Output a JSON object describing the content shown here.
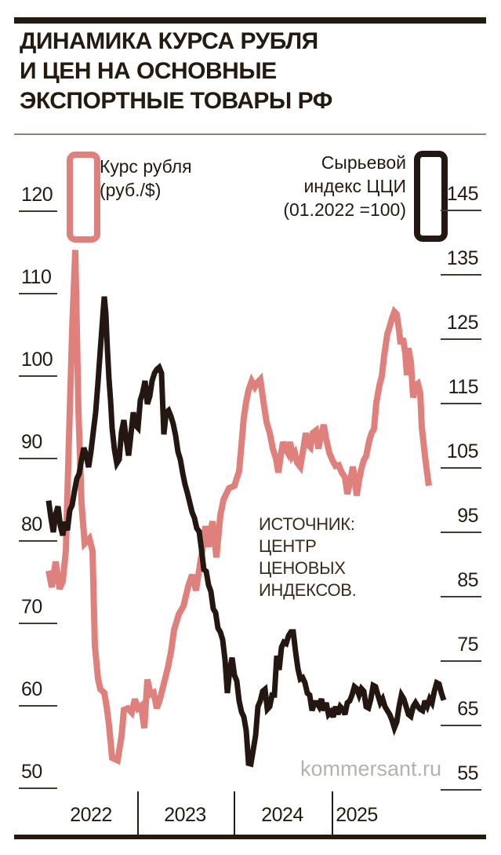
{
  "title": {
    "lines": [
      "ДИНАМИКА КУРСА РУБЛЯ",
      "И ЦЕН НА ОСНОВНЫЕ",
      "ЭКСПОРТНЫЕ ТОВАРЫ РФ"
    ]
  },
  "legend": {
    "rub": {
      "lines": [
        "Курс рубля",
        "(руб./$)"
      ],
      "color": "#e0807d"
    },
    "cci": {
      "lines": [
        "Сырьевой",
        "индекс ЦЦИ",
        "(01.2022 =100)"
      ],
      "color": "#241712"
    }
  },
  "source": {
    "lines": [
      "ИСТОЧНИК:",
      "ЦЕНТР",
      "ЦЕНОВЫХ",
      "ИНДЕКСОВ."
    ]
  },
  "watermark": "kommersant.ru",
  "x_axis": {
    "years": [
      "2022",
      "2023",
      "2024",
      "2025"
    ]
  },
  "chart_data": {
    "type": "line",
    "title": "Динамика курса рубля и цен на основные экспортные товары РФ",
    "x_note": "x is horizontal plot position in px; only year labels 2022-2025 are shown on axis",
    "left_axis": {
      "label": "Курс рубля (руб./$)",
      "min": 50,
      "max": 120,
      "ticks": [
        120,
        110,
        100,
        90,
        80,
        70,
        60,
        50
      ]
    },
    "right_axis": {
      "label": "Сырьевой индекс ЦЦИ (01.2022 =100)",
      "min": 55,
      "max": 145,
      "ticks": [
        145,
        135,
        125,
        115,
        105,
        95,
        85,
        75,
        65,
        55
      ]
    },
    "series": [
      {
        "name": "Курс рубля (руб./$)",
        "axis": "left",
        "color": "#e0807d",
        "width": 8,
        "points": [
          [
            62,
            76.3
          ],
          [
            66,
            74.3
          ],
          [
            71,
            77.4
          ],
          [
            76,
            74.1
          ],
          [
            80,
            75
          ],
          [
            84,
            78.7
          ],
          [
            88,
            92.5
          ],
          [
            92,
            105.4
          ],
          [
            96,
            115.2
          ],
          [
            100,
            95.9
          ],
          [
            104,
            84.4
          ],
          [
            108,
            79.6
          ],
          [
            114,
            80.2
          ],
          [
            118,
            78.7
          ],
          [
            121,
            67.2
          ],
          [
            125,
            63.2
          ],
          [
            128,
            61.9
          ],
          [
            133,
            61.5
          ],
          [
            136,
            59.8
          ],
          [
            139,
            57.6
          ],
          [
            143,
            53.6
          ],
          [
            150,
            53.3
          ],
          [
            155,
            56.2
          ],
          [
            158,
            59.4
          ],
          [
            163,
            59.6
          ],
          [
            168,
            59.1
          ],
          [
            172,
            60.7
          ],
          [
            176,
            59.6
          ],
          [
            180,
            59.9
          ],
          [
            184,
            57.2
          ],
          [
            188,
            63.1
          ],
          [
            192,
            61.3
          ],
          [
            196,
            61.5
          ],
          [
            200,
            59.6
          ],
          [
            204,
            60.7
          ],
          [
            209,
            62.6
          ],
          [
            214,
            64.5
          ],
          [
            218,
            66.4
          ],
          [
            222,
            69.1
          ],
          [
            228,
            71
          ],
          [
            234,
            72
          ],
          [
            240,
            74.4
          ],
          [
            245,
            75.8
          ],
          [
            250,
            73.9
          ],
          [
            255,
            77
          ],
          [
            258,
            78.7
          ],
          [
            262,
            81.7
          ],
          [
            266,
            79.2
          ],
          [
            271,
            82.3
          ],
          [
            276,
            77.9
          ],
          [
            281,
            83
          ],
          [
            285,
            84.9
          ],
          [
            292,
            86.3
          ],
          [
            299,
            86.6
          ],
          [
            305,
            88.4
          ],
          [
            308,
            91.6
          ],
          [
            311,
            94.9
          ],
          [
            314,
            96.8
          ],
          [
            317,
            98.2
          ],
          [
            321,
            99.3
          ],
          [
            325,
            98.6
          ],
          [
            328,
            99.1
          ],
          [
            332,
            99.5
          ],
          [
            336,
            96.8
          ],
          [
            340,
            94.3
          ],
          [
            344,
            93
          ],
          [
            348,
            91.1
          ],
          [
            352,
            89.9
          ],
          [
            355,
            88.2
          ],
          [
            358,
            90.2
          ],
          [
            361,
            91.9
          ],
          [
            364,
            91.1
          ],
          [
            367,
            90.6
          ],
          [
            370,
            91.9
          ],
          [
            373,
            90.2
          ],
          [
            376,
            90.6
          ],
          [
            379,
            89.4
          ],
          [
            383,
            88.9
          ],
          [
            387,
            91.1
          ],
          [
            390,
            93
          ],
          [
            393,
            91.6
          ],
          [
            396,
            91.3
          ],
          [
            399,
            93
          ],
          [
            403,
            93.3
          ],
          [
            406,
            91.1
          ],
          [
            409,
            92.5
          ],
          [
            413,
            94
          ],
          [
            416,
            92.3
          ],
          [
            420,
            90.6
          ],
          [
            424,
            89.7
          ],
          [
            428,
            89
          ],
          [
            432,
            89.1
          ],
          [
            436,
            88.2
          ],
          [
            440,
            87.6
          ],
          [
            443,
            85.6
          ],
          [
            447,
            87.3
          ],
          [
            450,
            88.9
          ],
          [
            452,
            87.8
          ],
          [
            455,
            85.4
          ],
          [
            458,
            87.3
          ],
          [
            461,
            88.7
          ],
          [
            464,
            89.7
          ],
          [
            467,
            90.2
          ],
          [
            471,
            92.1
          ],
          [
            474,
            93
          ],
          [
            477,
            93.5
          ],
          [
            480,
            96.7
          ],
          [
            484,
            98.8
          ],
          [
            487,
            99.9
          ],
          [
            490,
            102.4
          ],
          [
            494,
            105
          ],
          [
            497,
            105.9
          ],
          [
            500,
            106.9
          ],
          [
            503,
            107.7
          ],
          [
            506,
            107.4
          ],
          [
            509,
            105.4
          ],
          [
            511,
            103.8
          ],
          [
            514,
            104.5
          ],
          [
            517,
            102.6
          ],
          [
            519,
            100
          ],
          [
            521,
            103.3
          ],
          [
            524,
            101.6
          ],
          [
            527,
            97.3
          ],
          [
            530,
            98.8
          ],
          [
            533,
            99
          ],
          [
            536,
            97.8
          ],
          [
            538,
            93.7
          ],
          [
            541,
            91.1
          ],
          [
            544,
            88.7
          ],
          [
            547,
            86.6
          ]
        ]
      },
      {
        "name": "Сырьевой индекс ЦЦИ (01.2022 =100)",
        "axis": "right",
        "color": "#241712",
        "width": 7,
        "points": [
          [
            62,
            99.8
          ],
          [
            65,
            97.1
          ],
          [
            68,
            94.9
          ],
          [
            71,
            97.7
          ],
          [
            74,
            98.9
          ],
          [
            77,
            95.9
          ],
          [
            80,
            94.4
          ],
          [
            83,
            96.5
          ],
          [
            86,
            95.2
          ],
          [
            89,
            98.3
          ],
          [
            92,
            99.1
          ],
          [
            95,
            101.3
          ],
          [
            98,
            103.2
          ],
          [
            101,
            104
          ],
          [
            104,
            106.2
          ],
          [
            107,
            108
          ],
          [
            110,
            106.8
          ],
          [
            113,
            105
          ],
          [
            116,
            107.4
          ],
          [
            119,
            110.5
          ],
          [
            122,
            113.5
          ],
          [
            125,
            118.2
          ],
          [
            128,
            123.3
          ],
          [
            131,
            128.2
          ],
          [
            133,
            131.5
          ],
          [
            135,
            128.8
          ],
          [
            137,
            123.3
          ],
          [
            139,
            118.7
          ],
          [
            141,
            115.4
          ],
          [
            143,
            111.1
          ],
          [
            146,
            107.7
          ],
          [
            149,
            105.6
          ],
          [
            152,
            106.2
          ],
          [
            155,
            110.5
          ],
          [
            158,
            112.3
          ],
          [
            161,
            109.3
          ],
          [
            164,
            106.8
          ],
          [
            167,
            110.1
          ],
          [
            170,
            113.5
          ],
          [
            173,
            111.5
          ],
          [
            176,
            111.1
          ],
          [
            179,
            115.4
          ],
          [
            182,
            116.6
          ],
          [
            185,
            118.4
          ],
          [
            188,
            114.8
          ],
          [
            191,
            116
          ],
          [
            194,
            118.4
          ],
          [
            197,
            119.6
          ],
          [
            200,
            120.2
          ],
          [
            203,
            120.5
          ],
          [
            206,
            119.6
          ],
          [
            209,
            110.1
          ],
          [
            212,
            113.5
          ],
          [
            215,
            113.8
          ],
          [
            218,
            112.9
          ],
          [
            221,
            111.7
          ],
          [
            224,
            109.9
          ],
          [
            227,
            107.4
          ],
          [
            230,
            106.2
          ],
          [
            233,
            104.1
          ],
          [
            236,
            102.3
          ],
          [
            239,
            101
          ],
          [
            242,
            99.5
          ],
          [
            245,
            98
          ],
          [
            248,
            97.1
          ],
          [
            251,
            95.5
          ],
          [
            254,
            95
          ],
          [
            257,
            92.2
          ],
          [
            260,
            89.1
          ],
          [
            263,
            88.8
          ],
          [
            266,
            86.7
          ],
          [
            269,
            85.7
          ],
          [
            272,
            83
          ],
          [
            275,
            82.4
          ],
          [
            278,
            80
          ],
          [
            281,
            79.4
          ],
          [
            284,
            78.2
          ],
          [
            287,
            75.1
          ],
          [
            290,
            69.9
          ],
          [
            293,
            73.5
          ],
          [
            296,
            75.4
          ],
          [
            299,
            72.7
          ],
          [
            302,
            71.8
          ],
          [
            305,
            68.7
          ],
          [
            308,
            67
          ],
          [
            311,
            66.2
          ],
          [
            314,
            64.1
          ],
          [
            317,
            59
          ],
          [
            320,
            58.9
          ],
          [
            323,
            61.1
          ],
          [
            326,
            63.3
          ],
          [
            329,
            67.8
          ],
          [
            332,
            68.7
          ],
          [
            335,
            70.2
          ],
          [
            338,
            70.5
          ],
          [
            341,
            67.4
          ],
          [
            344,
            67.8
          ],
          [
            347,
            69.6
          ],
          [
            350,
            69.6
          ],
          [
            353,
            75.7
          ],
          [
            356,
            73.5
          ],
          [
            359,
            77
          ],
          [
            362,
            77.8
          ],
          [
            365,
            77.6
          ],
          [
            368,
            78.8
          ],
          [
            371,
            79.4
          ],
          [
            374,
            79.4
          ],
          [
            377,
            76.3
          ],
          [
            380,
            73.7
          ],
          [
            383,
            72.1
          ],
          [
            386,
            72.3
          ],
          [
            389,
            71.5
          ],
          [
            392,
            69.9
          ],
          [
            395,
            69.6
          ],
          [
            398,
            67.2
          ],
          [
            401,
            68.4
          ],
          [
            404,
            68.4
          ],
          [
            407,
            67.8
          ],
          [
            410,
            69
          ],
          [
            413,
            67.2
          ],
          [
            416,
            68.4
          ],
          [
            419,
            66.6
          ],
          [
            422,
            67
          ],
          [
            425,
            66.2
          ],
          [
            428,
            67.8
          ],
          [
            431,
            66.6
          ],
          [
            434,
            67.8
          ],
          [
            437,
            67.4
          ],
          [
            440,
            66.6
          ],
          [
            443,
            68.4
          ],
          [
            446,
            68.7
          ],
          [
            449,
            69.6
          ],
          [
            452,
            70.9
          ],
          [
            455,
            70.6
          ],
          [
            458,
            69.6
          ],
          [
            461,
            70.6
          ],
          [
            464,
            70.2
          ],
          [
            467,
            67.8
          ],
          [
            470,
            67.6
          ],
          [
            473,
            69
          ],
          [
            476,
            71.1
          ],
          [
            479,
            70.9
          ],
          [
            482,
            69.6
          ],
          [
            485,
            68.4
          ],
          [
            488,
            69
          ],
          [
            491,
            67.8
          ],
          [
            494,
            67.2
          ],
          [
            497,
            66.6
          ],
          [
            500,
            65.7
          ],
          [
            503,
            64.5
          ],
          [
            506,
            65.4
          ],
          [
            509,
            67.8
          ],
          [
            512,
            69.6
          ],
          [
            515,
            69
          ],
          [
            518,
            67.8
          ],
          [
            521,
            66.6
          ],
          [
            524,
            66.3
          ],
          [
            527,
            67.8
          ],
          [
            530,
            68.4
          ],
          [
            533,
            67.8
          ],
          [
            536,
            67.4
          ],
          [
            539,
            67.2
          ],
          [
            542,
            68.7
          ],
          [
            545,
            67.9
          ],
          [
            548,
            69
          ],
          [
            551,
            68.4
          ],
          [
            554,
            70.2
          ],
          [
            557,
            71.5
          ],
          [
            560,
            71.3
          ],
          [
            563,
            69.9
          ],
          [
            566,
            68.8
          ]
        ]
      }
    ]
  }
}
